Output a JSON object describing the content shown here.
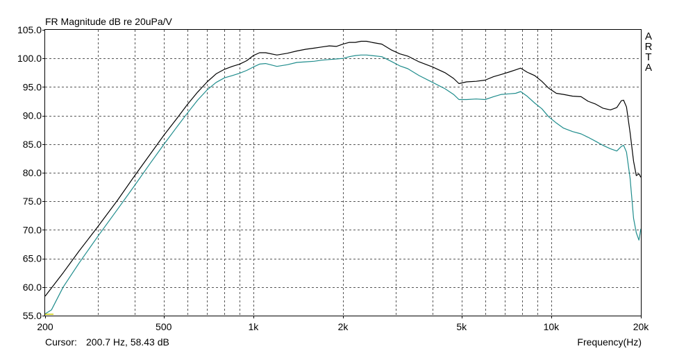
{
  "chart_data": {
    "type": "line",
    "title": "FR Magnitude dB re 20uPa/V",
    "brand_letters": [
      "A",
      "R",
      "T",
      "A"
    ],
    "xlabel": "Frequency(Hz)",
    "x_scale": "log",
    "xlim": [
      200,
      20000
    ],
    "ylim": [
      55,
      105
    ],
    "grid": true,
    "y_ticks": [
      55,
      60,
      65,
      70,
      75,
      80,
      85,
      90,
      95,
      100,
      105
    ],
    "y_tick_labels": [
      "55.0",
      "60.0",
      "65.0",
      "70.0",
      "75.0",
      "80.0",
      "85.0",
      "90.0",
      "95.0",
      "100.0",
      "105.0"
    ],
    "x_ticks": [
      200,
      500,
      1000,
      2000,
      5000,
      10000,
      20000
    ],
    "x_tick_labels": [
      "200",
      "500",
      "1k",
      "2k",
      "5k",
      "10k",
      "20k"
    ],
    "cursor": {
      "label": "Cursor:",
      "value": "200.7 Hz, 58.43 dB"
    },
    "series": [
      {
        "color": "#000000",
        "points": [
          [
            200,
            58.4
          ],
          [
            230,
            62.5
          ],
          [
            260,
            66.3
          ],
          [
            300,
            70.5
          ],
          [
            350,
            75.2
          ],
          [
            400,
            79.5
          ],
          [
            450,
            83.2
          ],
          [
            500,
            86.5
          ],
          [
            550,
            89.3
          ],
          [
            600,
            91.9
          ],
          [
            650,
            94.1
          ],
          [
            700,
            95.9
          ],
          [
            750,
            97.3
          ],
          [
            800,
            98.1
          ],
          [
            850,
            98.6
          ],
          [
            900,
            99.0
          ],
          [
            950,
            99.6
          ],
          [
            1000,
            100.5
          ],
          [
            1050,
            101.0
          ],
          [
            1100,
            101.0
          ],
          [
            1200,
            100.6
          ],
          [
            1300,
            100.9
          ],
          [
            1400,
            101.3
          ],
          [
            1500,
            101.6
          ],
          [
            1600,
            101.8
          ],
          [
            1700,
            102.0
          ],
          [
            1800,
            102.2
          ],
          [
            1900,
            102.1
          ],
          [
            2000,
            102.5
          ],
          [
            2100,
            102.8
          ],
          [
            2200,
            102.8
          ],
          [
            2300,
            103.0
          ],
          [
            2400,
            103.0
          ],
          [
            2500,
            102.8
          ],
          [
            2700,
            102.5
          ],
          [
            2900,
            101.5
          ],
          [
            3100,
            100.8
          ],
          [
            3300,
            100.4
          ],
          [
            3600,
            99.4
          ],
          [
            4000,
            98.5
          ],
          [
            4400,
            97.5
          ],
          [
            4700,
            96.5
          ],
          [
            4900,
            95.6
          ],
          [
            5200,
            95.9
          ],
          [
            5600,
            96.0
          ],
          [
            6000,
            96.2
          ],
          [
            6400,
            96.8
          ],
          [
            6800,
            97.2
          ],
          [
            7200,
            97.6
          ],
          [
            7600,
            98.0
          ],
          [
            7900,
            98.3
          ],
          [
            8300,
            97.6
          ],
          [
            8800,
            97.0
          ],
          [
            9300,
            96.0
          ],
          [
            9800,
            94.8
          ],
          [
            10400,
            93.9
          ],
          [
            11000,
            93.7
          ],
          [
            11800,
            93.4
          ],
          [
            12600,
            93.3
          ],
          [
            13300,
            92.5
          ],
          [
            14100,
            92.0
          ],
          [
            14900,
            91.3
          ],
          [
            15800,
            91.0
          ],
          [
            16600,
            91.4
          ],
          [
            17200,
            92.6
          ],
          [
            17500,
            92.7
          ],
          [
            17900,
            91.5
          ],
          [
            18400,
            87.0
          ],
          [
            18900,
            82.0
          ],
          [
            19300,
            79.5
          ],
          [
            19700,
            79.8
          ],
          [
            20000,
            79.2
          ]
        ]
      },
      {
        "color": "#1e8c8c",
        "points": [
          [
            200,
            55.3
          ],
          [
            210,
            56.0
          ],
          [
            230,
            60.0
          ],
          [
            260,
            64.2
          ],
          [
            300,
            68.8
          ],
          [
            350,
            73.6
          ],
          [
            400,
            77.8
          ],
          [
            450,
            81.6
          ],
          [
            500,
            84.9
          ],
          [
            550,
            87.8
          ],
          [
            600,
            90.4
          ],
          [
            650,
            92.7
          ],
          [
            700,
            94.5
          ],
          [
            750,
            95.8
          ],
          [
            800,
            96.6
          ],
          [
            850,
            97.0
          ],
          [
            900,
            97.4
          ],
          [
            950,
            97.9
          ],
          [
            1000,
            98.5
          ],
          [
            1050,
            99.0
          ],
          [
            1100,
            99.1
          ],
          [
            1200,
            98.6
          ],
          [
            1300,
            98.9
          ],
          [
            1400,
            99.3
          ],
          [
            1500,
            99.4
          ],
          [
            1600,
            99.5
          ],
          [
            1700,
            99.7
          ],
          [
            1800,
            99.8
          ],
          [
            1900,
            99.9
          ],
          [
            2000,
            100.0
          ],
          [
            2100,
            100.3
          ],
          [
            2200,
            100.5
          ],
          [
            2300,
            100.6
          ],
          [
            2400,
            100.6
          ],
          [
            2500,
            100.5
          ],
          [
            2700,
            100.3
          ],
          [
            2900,
            99.5
          ],
          [
            3100,
            98.7
          ],
          [
            3300,
            98.2
          ],
          [
            3600,
            97.0
          ],
          [
            4000,
            95.8
          ],
          [
            4400,
            94.7
          ],
          [
            4700,
            93.7
          ],
          [
            4900,
            92.8
          ],
          [
            5200,
            92.8
          ],
          [
            5600,
            92.9
          ],
          [
            6000,
            92.8
          ],
          [
            6400,
            93.3
          ],
          [
            6800,
            93.7
          ],
          [
            7200,
            93.8
          ],
          [
            7600,
            93.9
          ],
          [
            7900,
            94.2
          ],
          [
            8300,
            93.4
          ],
          [
            8800,
            92.2
          ],
          [
            9300,
            91.2
          ],
          [
            9800,
            89.8
          ],
          [
            10400,
            88.7
          ],
          [
            11000,
            87.8
          ],
          [
            11800,
            87.2
          ],
          [
            12600,
            86.8
          ],
          [
            13300,
            86.2
          ],
          [
            14100,
            85.5
          ],
          [
            14900,
            84.8
          ],
          [
            15800,
            84.2
          ],
          [
            16600,
            83.8
          ],
          [
            17200,
            84.6
          ],
          [
            17500,
            84.8
          ],
          [
            17900,
            83.6
          ],
          [
            18400,
            79.0
          ],
          [
            18900,
            72.0
          ],
          [
            19300,
            69.5
          ],
          [
            19700,
            68.2
          ],
          [
            20000,
            70.2
          ]
        ]
      }
    ]
  }
}
